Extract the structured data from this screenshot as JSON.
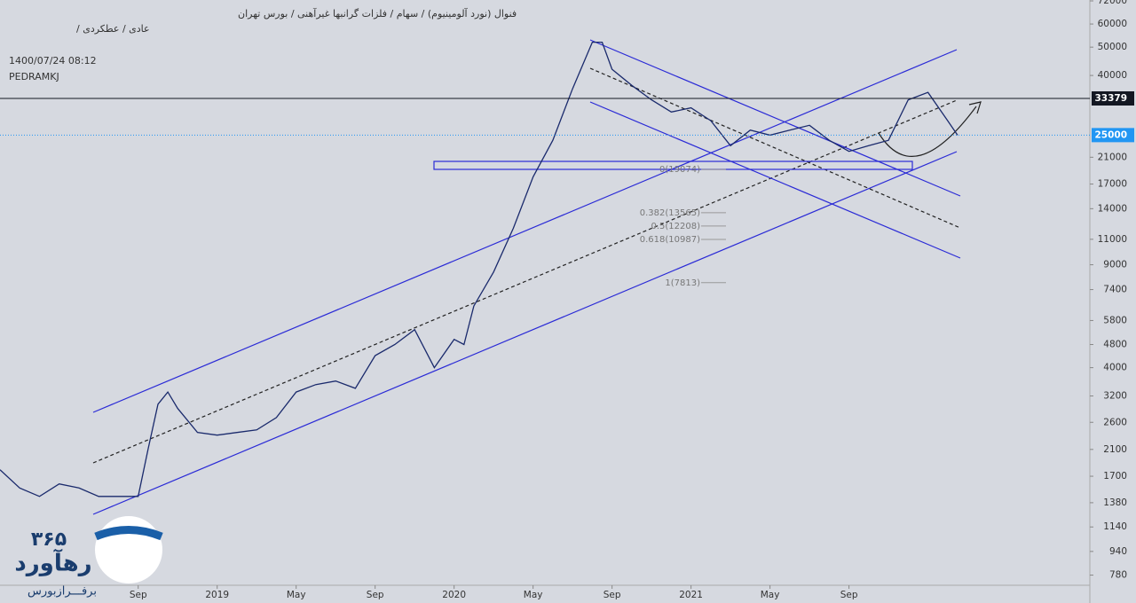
{
  "chart_data": {
    "type": "line",
    "header": [
      "فنوال (نورد آلومینیوم) / سهام / فلزات گرانبها غیرآهنی / بورس تهران",
      "عادی / عطکردی /"
    ],
    "timestamp": "1400/07/24 08:12",
    "author": "PEDRAMKJ",
    "logo": [
      "۳۶۵",
      "رهآورد",
      "برفـــرازبورس"
    ],
    "log_scale": true,
    "xlim": [
      -7,
      48.2
    ],
    "ylim": [
      720,
      72500
    ],
    "xticks": [
      {
        "value": 0,
        "label": "Sep"
      },
      {
        "value": 4,
        "label": "2019"
      },
      {
        "value": 8,
        "label": "May"
      },
      {
        "value": 12,
        "label": "Sep"
      },
      {
        "value": 16,
        "label": "2020"
      },
      {
        "value": 20,
        "label": "May"
      },
      {
        "value": 24,
        "label": "Sep"
      },
      {
        "value": 28,
        "label": "2021"
      },
      {
        "value": 32,
        "label": "May"
      },
      {
        "value": 36,
        "label": "Sep"
      }
    ],
    "yticks": [
      780,
      940,
      1140,
      1380,
      1700,
      2100,
      2600,
      3200,
      4000,
      4800,
      5800,
      7400,
      9000,
      11000,
      14000,
      17000,
      21000,
      40000,
      50000,
      60000,
      72000
    ],
    "price_lines": [
      {
        "value": 33379,
        "color": "#131722",
        "style": "solid"
      },
      {
        "value": 25000,
        "color": "#2196f3",
        "style": "dotted"
      }
    ],
    "fib_levels": [
      {
        "value": 19074,
        "label": "0(19074)"
      },
      {
        "value": 13565,
        "label": "0.382(13565)"
      },
      {
        "value": 12208,
        "label": "0.5(12208)"
      },
      {
        "value": 10987,
        "label": "0.618(10987)"
      },
      {
        "value": 7813,
        "label": "1(7813)"
      }
    ],
    "series": [
      {
        "name": "فنوال",
        "color": "#1a2a6c",
        "x": [
          -7,
          -6,
          -5,
          -4,
          -3,
          -2,
          -1,
          0,
          0.5,
          1,
          1.5,
          2,
          3,
          4,
          5,
          6,
          7,
          8,
          9,
          10,
          11,
          12,
          13,
          14,
          15,
          16,
          16.5,
          17,
          18,
          19,
          20,
          21,
          22,
          23,
          23.5,
          24,
          25,
          26,
          27,
          28,
          29,
          30,
          31,
          32,
          33,
          34,
          35,
          36,
          37,
          38,
          39,
          40,
          41,
          41.5
        ],
        "values": [
          1790,
          1550,
          1450,
          1600,
          1550,
          1450,
          1450,
          1450,
          2100,
          3000,
          3300,
          2900,
          2400,
          2350,
          2400,
          2450,
          2700,
          3300,
          3500,
          3600,
          3400,
          4400,
          4800,
          5400,
          4000,
          5000,
          4800,
          6500,
          8500,
          12000,
          18000,
          24000,
          36000,
          52000,
          52000,
          42000,
          37000,
          33000,
          30000,
          31000,
          28000,
          23000,
          26000,
          25000,
          26000,
          27000,
          24000,
          22000,
          23000,
          24000,
          33000,
          35000,
          28000,
          25000
        ]
      }
    ]
  }
}
